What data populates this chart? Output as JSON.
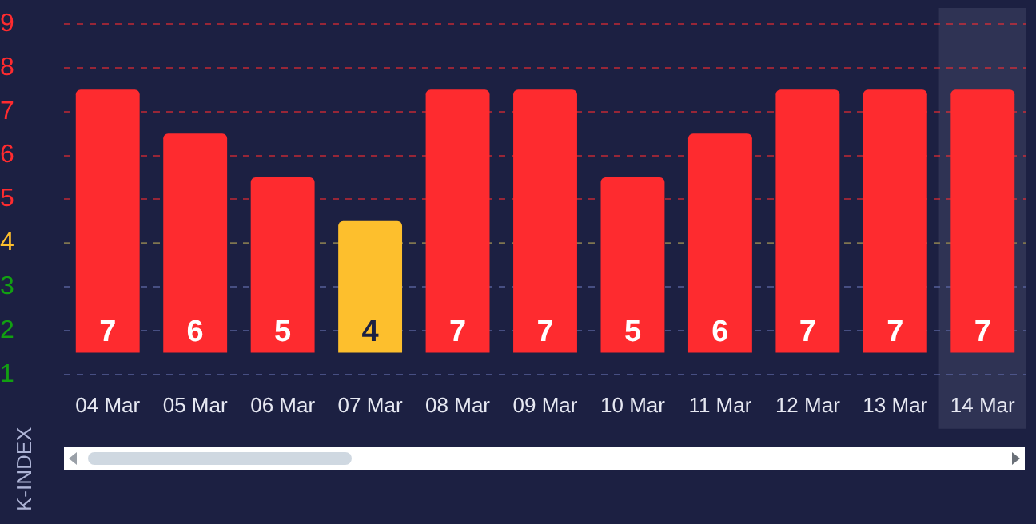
{
  "chart_data": {
    "type": "bar",
    "ylabel": "K-INDEX",
    "categories": [
      "04 Mar",
      "05 Mar",
      "06 Mar",
      "07 Mar",
      "08 Mar",
      "09 Mar",
      "10 Mar",
      "11 Mar",
      "12 Mar",
      "13 Mar",
      "14 Mar"
    ],
    "base": [
      1.5,
      1.5,
      1.5,
      1.5,
      1.5,
      1.5,
      1.5,
      1.5,
      1.5,
      1.5,
      1.5
    ],
    "values": [
      6,
      5,
      4,
      3,
      6,
      6,
      4,
      5,
      6,
      6,
      6
    ],
    "value_labels": [
      "7",
      "6",
      "5",
      "4",
      "7",
      "7",
      "5",
      "6",
      "7",
      "7",
      "7"
    ],
    "colors": [
      "#fe2b2f",
      "#fe2b2f",
      "#fe2b2f",
      "#fdbf2d",
      "#fe2b2f",
      "#fe2b2f",
      "#fe2b2f",
      "#fe2b2f",
      "#fe2b2f",
      "#fe2b2f",
      "#fe2b2f"
    ],
    "ylim": [
      1,
      9
    ],
    "yticks": [
      1,
      2,
      3,
      4,
      5,
      6,
      7,
      8,
      9
    ],
    "grid": "y",
    "ref_lines": [
      {
        "axis": "y",
        "value": 4,
        "color": "#7f7550",
        "line_style": "dashed"
      }
    ],
    "bands": [
      {
        "axis": "x",
        "from": "14 Mar",
        "to": "14 Mar",
        "color": "#2f3354"
      }
    ]
  }
}
